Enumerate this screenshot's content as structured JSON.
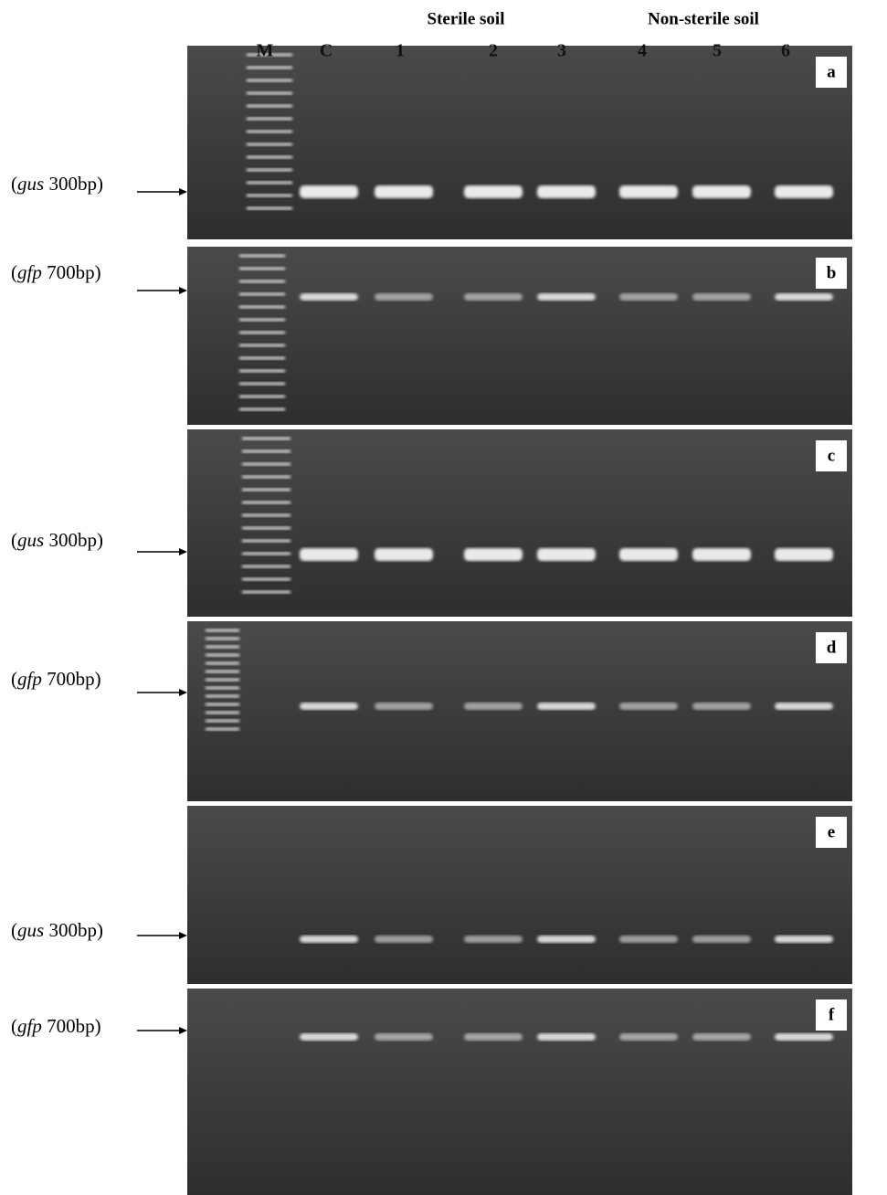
{
  "header": {
    "groups": [
      "Sterile soil",
      "Non-sterile soil"
    ]
  },
  "lanes": [
    "M",
    "C",
    "1",
    "2",
    "3",
    "4",
    "5",
    "6"
  ],
  "panels": [
    {
      "letter": "a",
      "label": [
        "(",
        "gus",
        " 300bp)"
      ]
    },
    {
      "letter": "b",
      "label": [
        "(",
        "gfp",
        " 700bp)"
      ]
    },
    {
      "letter": "c",
      "label": [
        "(",
        "gus",
        " 300bp)"
      ]
    },
    {
      "letter": "d",
      "label": [
        "(",
        "gfp",
        " 700bp)"
      ]
    },
    {
      "letter": "e",
      "label": [
        "(",
        "gus",
        " 300bp)"
      ]
    },
    {
      "letter": "f",
      "label": [
        "(",
        "gfp",
        " 700bp)"
      ]
    }
  ]
}
